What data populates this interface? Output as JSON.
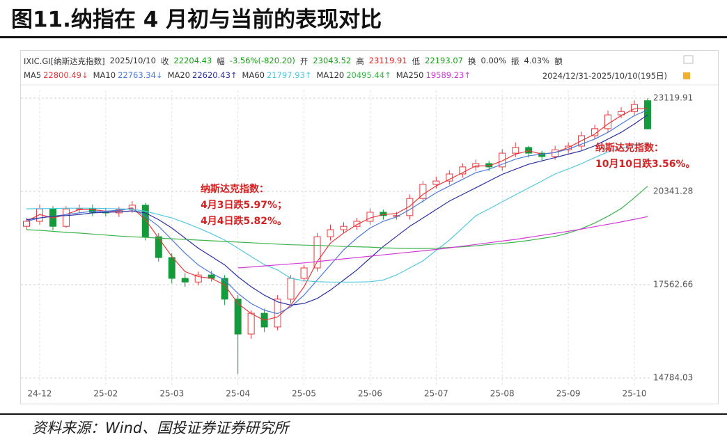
{
  "chart_data": {
    "type": "candlestick",
    "title": "图11.纳指在 4 月初与当前的表现对比",
    "source": "资料来源：Wind、国投证券证券研究所",
    "header": [
      {
        "value": "IXIC.GI[纳斯达克指数]"
      },
      {
        "value": "2025/10/10"
      },
      {
        "label": "收",
        "value": "22204.43",
        "color": "#16a016"
      },
      {
        "label": "幅",
        "value": "-3.56%(-820.20)",
        "color": "#16a016"
      },
      {
        "label": "开",
        "value": "23043.52",
        "color": "#16a016"
      },
      {
        "label": "高",
        "value": "23119.91",
        "color": "#e02020"
      },
      {
        "label": "低",
        "value": "22193.07",
        "color": "#16a016"
      },
      {
        "label": "换",
        "value": "0.00%"
      },
      {
        "label": "振",
        "value": "4.03%"
      },
      {
        "label": "额"
      }
    ],
    "range_text": "2024/12/31-2025/10/10(195日)",
    "categories": [
      null,
      "24-12",
      null,
      null,
      null,
      null,
      "25-02",
      null,
      null,
      null,
      null,
      "25-03",
      null,
      null,
      null,
      null,
      "25-04",
      null,
      null,
      null,
      null,
      "25-05",
      null,
      null,
      null,
      null,
      "25-06",
      null,
      null,
      null,
      null,
      "25-07",
      null,
      null,
      null,
      null,
      "25-08",
      null,
      null,
      null,
      null,
      "25-09",
      null,
      null,
      null,
      null,
      "25-10",
      null
    ],
    "open": [
      19300,
      19450,
      19820,
      19300,
      19820,
      19830,
      19720,
      19700,
      19800,
      19930,
      18990,
      18370,
      17750,
      17640,
      17850,
      17750,
      17130,
      16090,
      16710,
      16300,
      17130,
      17750,
      18060,
      18990,
      19200,
      19300,
      19450,
      19720,
      19620,
      19620,
      20130,
      20550,
      20650,
      20860,
      21070,
      21170,
      21070,
      21480,
      21650,
      21480,
      21380,
      21580,
      21690,
      22000,
      22210,
      22620,
      22720,
      23043.52
    ],
    "high": [
      19550,
      19950,
      19900,
      19900,
      19950,
      19950,
      19850,
      19880,
      20050,
      20000,
      19100,
      18500,
      17900,
      17950,
      17980,
      17850,
      17250,
      16800,
      16850,
      17250,
      17850,
      18150,
      19100,
      19350,
      19420,
      19550,
      19830,
      19800,
      19730,
      20250,
      20650,
      20780,
      20970,
      21180,
      21290,
      21250,
      21600,
      21800,
      21700,
      21550,
      21700,
      21800,
      22120,
      22330,
      22750,
      22850,
      23050,
      23119.91
    ],
    "low": [
      19200,
      19350,
      19180,
      19250,
      19700,
      19600,
      19600,
      19580,
      19700,
      18880,
      18250,
      17600,
      17500,
      17540,
      17650,
      16950,
      14900,
      15950,
      16150,
      16200,
      17000,
      17650,
      17950,
      18880,
      19100,
      19200,
      19350,
      19500,
      19500,
      19500,
      20010,
      20430,
      20540,
      20750,
      20950,
      20950,
      20960,
      21360,
      21350,
      21250,
      21280,
      21470,
      21580,
      21890,
      22100,
      22520,
      22610,
      22193.07
    ],
    "close": [
      19450,
      19820,
      19300,
      19820,
      19830,
      19720,
      19700,
      19800,
      19930,
      18990,
      18370,
      17750,
      17640,
      17850,
      17750,
      17130,
      16090,
      16710,
      16300,
      17130,
      17750,
      18060,
      18990,
      19200,
      19300,
      19450,
      19720,
      19620,
      19620,
      20130,
      20550,
      20650,
      20860,
      21070,
      21170,
      21070,
      21480,
      21650,
      21480,
      21380,
      21580,
      21690,
      22000,
      22210,
      22620,
      22720,
      22930,
      22204.43
    ],
    "up_color": "#e8383d",
    "down_color": "#139a3a",
    "lines": [
      {
        "name": "MA5",
        "legend_value": "22800.49↓",
        "color": "#e8383d",
        "values": [
          19450,
          19650,
          19550,
          19650,
          19800,
          19800,
          19750,
          19760,
          19850,
          19500,
          18950,
          18400,
          17950,
          17800,
          17750,
          17550,
          17000,
          16700,
          16500,
          16600,
          16950,
          17500,
          18250,
          18800,
          19100,
          19350,
          19550,
          19650,
          19680,
          19900,
          20250,
          20500,
          20700,
          20900,
          21100,
          21100,
          21250,
          21450,
          21550,
          21450,
          21500,
          21650,
          21850,
          22050,
          22350,
          22600,
          22800,
          22800.49
        ]
      },
      {
        "name": "MA10",
        "legend_value": "22763.34↓",
        "color": "#4b79d8",
        "values": [
          19450,
          19550,
          19600,
          19650,
          19700,
          19750,
          19750,
          19780,
          19830,
          19600,
          19300,
          18900,
          18500,
          18150,
          17900,
          17700,
          17300,
          17000,
          16800,
          16700,
          16900,
          17250,
          17700,
          18150,
          18600,
          18950,
          19250,
          19450,
          19580,
          19800,
          20050,
          20300,
          20500,
          20700,
          20900,
          21000,
          21150,
          21300,
          21400,
          21450,
          21500,
          21600,
          21750,
          21900,
          22100,
          22350,
          22600,
          22763.34
        ]
      },
      {
        "name": "MA20",
        "legend_value": "22620.43↑",
        "color": "#2b2fa0",
        "values": [
          19500,
          19550,
          19600,
          19620,
          19650,
          19700,
          19720,
          19730,
          19760,
          19700,
          19500,
          19250,
          18950,
          18650,
          18400,
          18150,
          17800,
          17500,
          17250,
          17050,
          16950,
          17000,
          17150,
          17400,
          17700,
          18000,
          18350,
          18700,
          19000,
          19300,
          19550,
          19800,
          20050,
          20250,
          20450,
          20650,
          20850,
          21000,
          21150,
          21250,
          21350,
          21450,
          21550,
          21700,
          21900,
          22100,
          22350,
          22620.43
        ]
      },
      {
        "name": "MA60",
        "legend_value": "21797.93↑",
        "color": "#52c7e0",
        "values": [
          19820,
          19830,
          19830,
          19840,
          19840,
          19840,
          19830,
          19820,
          19810,
          19750,
          19650,
          19550,
          19410,
          19250,
          19080,
          18890,
          18650,
          18400,
          18160,
          18000,
          17750,
          17680,
          17650,
          17640,
          17640,
          17640,
          17650,
          17700,
          17850,
          18060,
          18270,
          18580,
          18890,
          19250,
          19616,
          19820,
          20030,
          20240,
          20445,
          20650,
          20860,
          21010,
          21170,
          21350,
          21520,
          21630,
          21730,
          21797.93
        ]
      },
      {
        "name": "MA120",
        "legend_value": "20495.44↑",
        "color": "#3cb44b",
        "values": [
          19200,
          19180,
          19150,
          19120,
          19100,
          19070,
          19040,
          19010,
          18990,
          18970,
          18950,
          18930,
          18910,
          18890,
          18870,
          18850,
          18830,
          18810,
          18790,
          18770,
          18750,
          18740,
          18730,
          18720,
          18700,
          18690,
          18680,
          18660,
          18650,
          18640,
          18640,
          18650,
          18670,
          18690,
          18720,
          18760,
          18790,
          18830,
          18880,
          18940,
          19000,
          19100,
          19230,
          19400,
          19600,
          19830,
          20150,
          20495.44
        ]
      },
      {
        "name": "MA250",
        "legend_value": "19589.23↑",
        "color": "#d23ad8",
        "values": [
          null,
          null,
          null,
          null,
          null,
          null,
          null,
          null,
          null,
          null,
          null,
          null,
          null,
          null,
          null,
          null,
          18060,
          18090,
          18120,
          18150,
          18180,
          18210,
          18250,
          18290,
          18330,
          18370,
          18410,
          18450,
          18490,
          18530,
          18570,
          18610,
          18660,
          18710,
          18760,
          18810,
          18860,
          18910,
          18970,
          19030,
          19090,
          19150,
          19220,
          19290,
          19360,
          19430,
          19510,
          19589.23
        ]
      }
    ],
    "ylim": [
      14784.03,
      23119.91
    ],
    "yticks": [
      23119.91,
      20341.28,
      17562.66,
      14784.03
    ],
    "grid": true,
    "annotations": [
      {
        "color": "#d42020",
        "lines": [
          "纳斯达克指数：",
          "4月3日跌5.97%；",
          "4月4日跌5.82%。"
        ]
      },
      {
        "color": "#d42020",
        "lines": [
          "纳斯达克指数：",
          "10月10日跌3.56%。"
        ]
      }
    ]
  }
}
